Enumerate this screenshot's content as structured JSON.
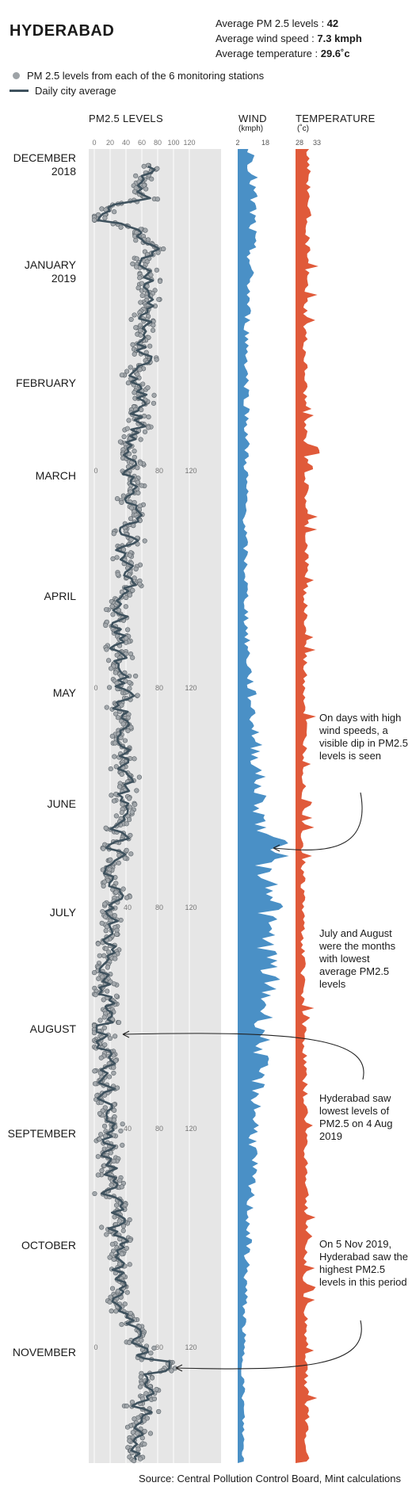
{
  "header": {
    "city": "HYDERABAD",
    "stat1_label": "Average PM 2.5 levels : ",
    "stat1_value": "42",
    "stat2_label": "Average wind speed : ",
    "stat2_value": "7.3 kmph",
    "stat3_label": "Average temperature : ",
    "stat3_value": "29.6˚c"
  },
  "legend": {
    "dots": "PM 2.5 levels from each of the 6 monitoring stations",
    "line": "Daily city average"
  },
  "columns": {
    "pm": "PM2.5  LEVELS",
    "wind": "WIND",
    "wind_unit": "(kmph)",
    "temp": "TEMPERATURE",
    "temp_unit": "(˚c)"
  },
  "months": [
    {
      "label": "DECEMBER",
      "year": "2018"
    },
    {
      "label": "JANUARY",
      "year": "2019"
    },
    {
      "label": "FEBRUARY",
      "year": ""
    },
    {
      "label": "MARCH",
      "year": ""
    },
    {
      "label": "APRIL",
      "year": ""
    },
    {
      "label": "MAY",
      "year": ""
    },
    {
      "label": "JUNE",
      "year": ""
    },
    {
      "label": "JULY",
      "year": ""
    },
    {
      "label": "AUGUST",
      "year": ""
    },
    {
      "label": "SEPTEMBER",
      "year": ""
    },
    {
      "label": "OCTOBER",
      "year": ""
    },
    {
      "label": "NOVEMBER",
      "year": ""
    }
  ],
  "notes": {
    "wind": "On days with high wind speeds, a visible dip in PM2.5 levels is seen",
    "july": "July and August were the months with lowest average PM2.5 levels",
    "lowest": "Hyderabad saw lowest levels of PM2.5 on 4 Aug 2019",
    "highest": "On 5 Nov 2019, Hyderabad saw the highest PM2.5 levels in this period"
  },
  "source": "Source: Central Pollution Control Board, Mint calculations",
  "chart_data": {
    "type": "scatter",
    "title": "HYDERABAD",
    "x_axis_ticks_pm": [
      "0",
      "20",
      "40",
      "60",
      "80",
      "100",
      "120"
    ],
    "repeat_ticks": [
      {
        "month": "MARCH",
        "labels": [
          "0",
          "80",
          "120"
        ]
      },
      {
        "month": "MAY",
        "labels": [
          "0",
          "80",
          "120"
        ]
      },
      {
        "month": "JULY",
        "labels": [
          "40",
          "80",
          "120"
        ]
      },
      {
        "month": "SEPTEMBER",
        "labels": [
          "40",
          "80",
          "120"
        ]
      },
      {
        "month": "NOVEMBER",
        "labels": [
          "0",
          "80",
          "120"
        ]
      }
    ],
    "x_axis_ticks_wind": [
      "2",
      "18"
    ],
    "x_axis_ticks_temp": [
      "28",
      "33"
    ],
    "pm_range": [
      0,
      140
    ],
    "wind_range": [
      0,
      40
    ],
    "temp_range": [
      27,
      35
    ],
    "monthly_pm_average": [
      {
        "month": "Dec 2018",
        "value": 68
      },
      {
        "month": "Jan 2019",
        "value": 68
      },
      {
        "month": "Feb 2019",
        "value": 52
      },
      {
        "month": "Mar 2019",
        "value": 42
      },
      {
        "month": "Apr 2019",
        "value": 30
      },
      {
        "month": "May 2019",
        "value": 42
      },
      {
        "month": "Jun 2019",
        "value": 30
      },
      {
        "month": "Jul 2019",
        "value": 16
      },
      {
        "month": "Aug 2019",
        "value": 14
      },
      {
        "month": "Sep 2019",
        "value": 22
      },
      {
        "month": "Oct 2019",
        "value": 35
      },
      {
        "month": "Nov 2019",
        "value": 60
      }
    ],
    "monthly_wind_average": [
      {
        "month": "Dec 2018",
        "value": 8
      },
      {
        "month": "Jan 2019",
        "value": 5
      },
      {
        "month": "Feb 2019",
        "value": 5
      },
      {
        "month": "Mar 2019",
        "value": 4
      },
      {
        "month": "Apr 2019",
        "value": 5
      },
      {
        "month": "May 2019",
        "value": 10
      },
      {
        "month": "Jun 2019",
        "value": 14
      },
      {
        "month": "Jul 2019",
        "value": 17
      },
      {
        "month": "Aug 2019",
        "value": 11
      },
      {
        "month": "Sep 2019",
        "value": 7
      },
      {
        "month": "Oct 2019",
        "value": 4
      },
      {
        "month": "Nov 2019",
        "value": 3
      }
    ],
    "monthly_temp_average": [
      {
        "month": "Dec 2018",
        "value": 30.5
      },
      {
        "month": "Jan 2019",
        "value": 29.5
      },
      {
        "month": "Feb 2019",
        "value": 29.5
      },
      {
        "month": "Mar 2019",
        "value": 30
      },
      {
        "month": "Apr 2019",
        "value": 29.5
      },
      {
        "month": "May 2019",
        "value": 29.5
      },
      {
        "month": "Jun 2019",
        "value": 29
      },
      {
        "month": "Jul 2019",
        "value": 29
      },
      {
        "month": "Aug 2019",
        "value": 29.5
      },
      {
        "month": "Sep 2019",
        "value": 30
      },
      {
        "month": "Oct 2019",
        "value": 29.5
      },
      {
        "month": "Nov 2019",
        "value": 30
      }
    ],
    "colors": {
      "panel": "#e6e6e6",
      "dots": "#9ea3a7",
      "line": "#3f525e",
      "wind": "#4a90c6",
      "temp": "#e05a3a"
    }
  }
}
